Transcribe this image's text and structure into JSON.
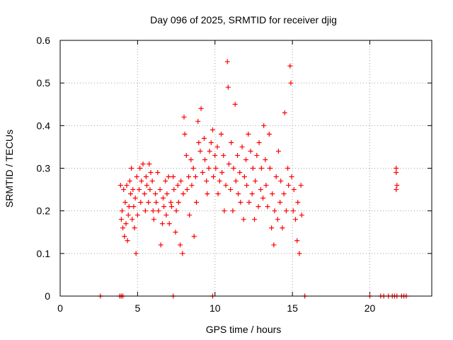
{
  "chart_data": {
    "type": "scatter",
    "title": "Day 096 of 2025, SRMTID for receiver djig",
    "xlabel": "GPS time / hours",
    "ylabel": "SRMTID / TECUs",
    "xlim": [
      0,
      24
    ],
    "ylim": [
      0,
      0.6
    ],
    "xticks": [
      0,
      5,
      10,
      15,
      20
    ],
    "yticks": [
      0,
      0.1,
      0.2,
      0.3,
      0.4,
      0.5,
      0.6
    ],
    "xtick_labels": [
      "0",
      "5",
      "10",
      "15",
      "20"
    ],
    "ytick_labels": [
      "0",
      "0.1",
      "0.2",
      "0.3",
      "0.4",
      "0.5",
      "0.6"
    ],
    "grid": true,
    "marker": "plus",
    "series": [
      {
        "name": "SRMTID",
        "color": "#ff0000",
        "points": [
          [
            3.9,
            0.26
          ],
          [
            3.95,
            0.18
          ],
          [
            4.0,
            0.2
          ],
          [
            4.05,
            0.16
          ],
          [
            4.1,
            0.25
          ],
          [
            4.15,
            0.14
          ],
          [
            4.2,
            0.22
          ],
          [
            4.25,
            0.17
          ],
          [
            4.3,
            0.26
          ],
          [
            4.35,
            0.13
          ],
          [
            4.4,
            0.19
          ],
          [
            4.45,
            0.21
          ],
          [
            4.5,
            0.27
          ],
          [
            4.55,
            0.24
          ],
          [
            4.6,
            0.3
          ],
          [
            4.65,
            0.18
          ],
          [
            4.7,
            0.25
          ],
          [
            4.75,
            0.21
          ],
          [
            4.8,
            0.16
          ],
          [
            4.85,
            0.23
          ],
          [
            4.9,
            0.1
          ],
          [
            4.95,
            0.28
          ],
          [
            5.0,
            0.19
          ],
          [
            5.1,
            0.25
          ],
          [
            5.15,
            0.3
          ],
          [
            5.2,
            0.22
          ],
          [
            5.25,
            0.27
          ],
          [
            5.35,
            0.31
          ],
          [
            5.45,
            0.24
          ],
          [
            5.5,
            0.2
          ],
          [
            5.55,
            0.28
          ],
          [
            5.6,
            0.26
          ],
          [
            5.7,
            0.22
          ],
          [
            5.75,
            0.31
          ],
          [
            5.8,
            0.25
          ],
          [
            5.85,
            0.29
          ],
          [
            5.95,
            0.27
          ],
          [
            6.0,
            0.2
          ],
          [
            6.05,
            0.18
          ],
          [
            6.15,
            0.24
          ],
          [
            6.2,
            0.22
          ],
          [
            6.3,
            0.29
          ],
          [
            6.35,
            0.2
          ],
          [
            6.45,
            0.25
          ],
          [
            6.5,
            0.12
          ],
          [
            6.6,
            0.17
          ],
          [
            6.65,
            0.23
          ],
          [
            6.7,
            0.21
          ],
          [
            6.8,
            0.27
          ],
          [
            6.85,
            0.19
          ],
          [
            6.9,
            0.24
          ],
          [
            7.0,
            0.28
          ],
          [
            7.05,
            0.17
          ],
          [
            7.15,
            0.22
          ],
          [
            7.2,
            0.21
          ],
          [
            7.3,
            0.28
          ],
          [
            7.35,
            0.25
          ],
          [
            7.45,
            0.15
          ],
          [
            7.5,
            0.2
          ],
          [
            7.6,
            0.26
          ],
          [
            7.65,
            0.22
          ],
          [
            7.75,
            0.12
          ],
          [
            7.8,
            0.27
          ],
          [
            7.9,
            0.1
          ],
          [
            7.95,
            0.24
          ],
          [
            8.0,
            0.42
          ],
          [
            8.05,
            0.38
          ],
          [
            8.15,
            0.33
          ],
          [
            8.2,
            0.25
          ],
          [
            8.3,
            0.28
          ],
          [
            8.35,
            0.19
          ],
          [
            8.45,
            0.32
          ],
          [
            8.5,
            0.26
          ],
          [
            8.6,
            0.3
          ],
          [
            8.65,
            0.14
          ],
          [
            8.75,
            0.28
          ],
          [
            8.8,
            0.22
          ],
          [
            8.9,
            0.41
          ],
          [
            8.95,
            0.36
          ],
          [
            9.05,
            0.34
          ],
          [
            9.1,
            0.44
          ],
          [
            9.2,
            0.29
          ],
          [
            9.3,
            0.37
          ],
          [
            9.35,
            0.32
          ],
          [
            9.45,
            0.27
          ],
          [
            9.5,
            0.24
          ],
          [
            9.6,
            0.3
          ],
          [
            9.65,
            0.34
          ],
          [
            9.75,
            0.36
          ],
          [
            9.85,
            0.39
          ],
          [
            9.9,
            0.28
          ],
          [
            10.0,
            0.33
          ],
          [
            10.05,
            0.3
          ],
          [
            10.15,
            0.35
          ],
          [
            10.2,
            0.24
          ],
          [
            10.3,
            0.27
          ],
          [
            10.4,
            0.38
          ],
          [
            10.45,
            0.29
          ],
          [
            10.55,
            0.33
          ],
          [
            10.6,
            0.2
          ],
          [
            10.7,
            0.26
          ],
          [
            10.8,
            0.55
          ],
          [
            10.85,
            0.49
          ],
          [
            10.9,
            0.31
          ],
          [
            11.0,
            0.25
          ],
          [
            11.05,
            0.36
          ],
          [
            11.15,
            0.2
          ],
          [
            11.2,
            0.3
          ],
          [
            11.3,
            0.45
          ],
          [
            11.35,
            0.27
          ],
          [
            11.45,
            0.33
          ],
          [
            11.5,
            0.24
          ],
          [
            11.6,
            0.29
          ],
          [
            11.65,
            0.22
          ],
          [
            11.75,
            0.35
          ],
          [
            11.85,
            0.18
          ],
          [
            11.9,
            0.28
          ],
          [
            12.0,
            0.32
          ],
          [
            12.05,
            0.26
          ],
          [
            12.15,
            0.38
          ],
          [
            12.2,
            0.22
          ],
          [
            12.3,
            0.34
          ],
          [
            12.4,
            0.24
          ],
          [
            12.45,
            0.3
          ],
          [
            12.55,
            0.18
          ],
          [
            12.6,
            0.27
          ],
          [
            12.7,
            0.33
          ],
          [
            12.8,
            0.21
          ],
          [
            12.85,
            0.36
          ],
          [
            12.95,
            0.25
          ],
          [
            13.0,
            0.3
          ],
          [
            13.1,
            0.23
          ],
          [
            13.15,
            0.4
          ],
          [
            13.25,
            0.32
          ],
          [
            13.3,
            0.26
          ],
          [
            13.4,
            0.21
          ],
          [
            13.5,
            0.38
          ],
          [
            13.55,
            0.3
          ],
          [
            13.65,
            0.16
          ],
          [
            13.7,
            0.24
          ],
          [
            13.8,
            0.12
          ],
          [
            13.85,
            0.2
          ],
          [
            13.95,
            0.28
          ],
          [
            14.05,
            0.18
          ],
          [
            14.1,
            0.34
          ],
          [
            14.2,
            0.22
          ],
          [
            14.25,
            0.27
          ],
          [
            14.35,
            0.16
          ],
          [
            14.45,
            0.24
          ],
          [
            14.5,
            0.43
          ],
          [
            14.6,
            0.2
          ],
          [
            14.7,
            0.3
          ],
          [
            14.75,
            0.26
          ],
          [
            14.85,
            0.54
          ],
          [
            14.9,
            0.5
          ],
          [
            14.95,
            0.28
          ],
          [
            15.05,
            0.2
          ],
          [
            15.1,
            0.25
          ],
          [
            15.2,
            0.18
          ],
          [
            15.3,
            0.13
          ],
          [
            15.35,
            0.22
          ],
          [
            15.45,
            0.1
          ],
          [
            15.55,
            0.26
          ],
          [
            15.6,
            0.19
          ],
          [
            21.7,
            0.3
          ],
          [
            21.7,
            0.29
          ],
          [
            21.75,
            0.26
          ],
          [
            21.7,
            0.25
          ],
          [
            2.6,
            0
          ],
          [
            3.85,
            0
          ],
          [
            3.95,
            0
          ],
          [
            4.05,
            0
          ],
          [
            7.3,
            0
          ],
          [
            9.85,
            0
          ],
          [
            15.8,
            0
          ],
          [
            20.0,
            0
          ],
          [
            20.7,
            0
          ],
          [
            20.9,
            0
          ],
          [
            21.2,
            0
          ],
          [
            21.45,
            0
          ],
          [
            21.6,
            0
          ],
          [
            21.75,
            0
          ],
          [
            22.05,
            0
          ],
          [
            22.2,
            0
          ],
          [
            22.35,
            0
          ]
        ]
      }
    ]
  }
}
